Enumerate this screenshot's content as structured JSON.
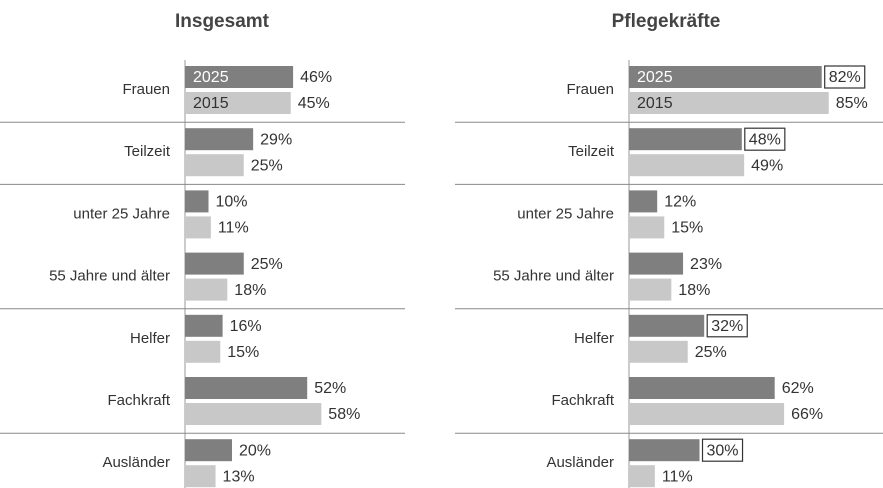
{
  "chart_data": [
    {
      "type": "barh",
      "title": "Insgesamt",
      "categories": [
        "Frauen",
        "Teilzeit",
        "unter 25 Jahre",
        "55 Jahre und älter",
        "Helfer",
        "Fachkraft",
        "Ausländer"
      ],
      "xlim": [
        0,
        100
      ],
      "series": [
        {
          "name": "2025",
          "color": "#7f7f7f",
          "values": [
            46,
            29,
            10,
            25,
            16,
            52,
            20
          ],
          "value_labels": [
            "46%",
            "29%",
            "10%",
            "25%",
            "16%",
            "52%",
            "20%"
          ]
        },
        {
          "name": "2015",
          "color": "#c8c8c8",
          "values": [
            45,
            25,
            11,
            18,
            15,
            58,
            13
          ],
          "value_labels": [
            "45%",
            "25%",
            "11%",
            "18%",
            "15%",
            "58%",
            "13%"
          ]
        }
      ]
    },
    {
      "type": "barh",
      "title": "Pflegekräfte",
      "categories": [
        "Frauen",
        "Teilzeit",
        "unter 25 Jahre",
        "55 Jahre und älter",
        "Helfer",
        "Fachkraft",
        "Ausländer"
      ],
      "xlim": [
        0,
        100
      ],
      "series": [
        {
          "name": "2025",
          "color": "#7f7f7f",
          "values": [
            82,
            48,
            12,
            23,
            32,
            62,
            30
          ],
          "value_labels": [
            "82%",
            "48%",
            "12%",
            "23%",
            "32%",
            "62%",
            "30%"
          ],
          "boxed": [
            true,
            true,
            false,
            false,
            true,
            false,
            true
          ]
        },
        {
          "name": "2015",
          "color": "#c8c8c8",
          "values": [
            85,
            49,
            15,
            18,
            25,
            66,
            11
          ],
          "value_labels": [
            "85%",
            "49%",
            "15%",
            "18%",
            "25%",
            "66%",
            "11%"
          ]
        }
      ]
    }
  ]
}
